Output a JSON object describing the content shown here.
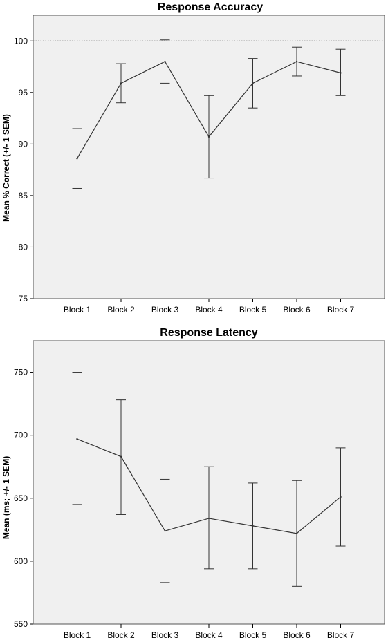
{
  "chart_data": [
    {
      "type": "line",
      "title": "Response Accuracy",
      "xlabel": "",
      "ylabel": "Mean % Correct (+/- 1 SEM)",
      "ylim": [
        75,
        102.5
      ],
      "yticks": [
        "75",
        "80",
        "85",
        "90",
        "95",
        "100"
      ],
      "categories": [
        "Block 1",
        "Block 2",
        "Block 3",
        "Block 4",
        "Block 5",
        "Block 6",
        "Block 7"
      ],
      "values": [
        88.6,
        95.9,
        98.0,
        90.7,
        95.9,
        98.0,
        96.9
      ],
      "error_low": [
        85.7,
        94.0,
        95.9,
        86.7,
        93.5,
        96.6,
        94.7
      ],
      "error_high": [
        91.5,
        97.8,
        100.1,
        94.7,
        98.3,
        99.4,
        99.2
      ],
      "reference_line": 100,
      "grid": false,
      "colors": {
        "plot_bg": "#f0f0f0",
        "line": "#333333"
      }
    },
    {
      "type": "line",
      "title": "Response Latency",
      "xlabel": "",
      "ylabel": "Mean (ms; +/- 1 SEM)",
      "ylim": [
        550,
        775
      ],
      "yticks": [
        "550",
        "600",
        "650",
        "700",
        "750"
      ],
      "categories": [
        "Block 1",
        "Block 2",
        "Block 3",
        "Block 4",
        "Block 5",
        "Block 6",
        "Block 7"
      ],
      "values": [
        697,
        683,
        624,
        634,
        628,
        622,
        651
      ],
      "error_low": [
        645,
        637,
        583,
        594,
        594,
        580,
        612
      ],
      "error_high": [
        750,
        728,
        665,
        675,
        662,
        664,
        690
      ],
      "grid": false,
      "colors": {
        "plot_bg": "#f0f0f0",
        "line": "#333333"
      }
    }
  ]
}
